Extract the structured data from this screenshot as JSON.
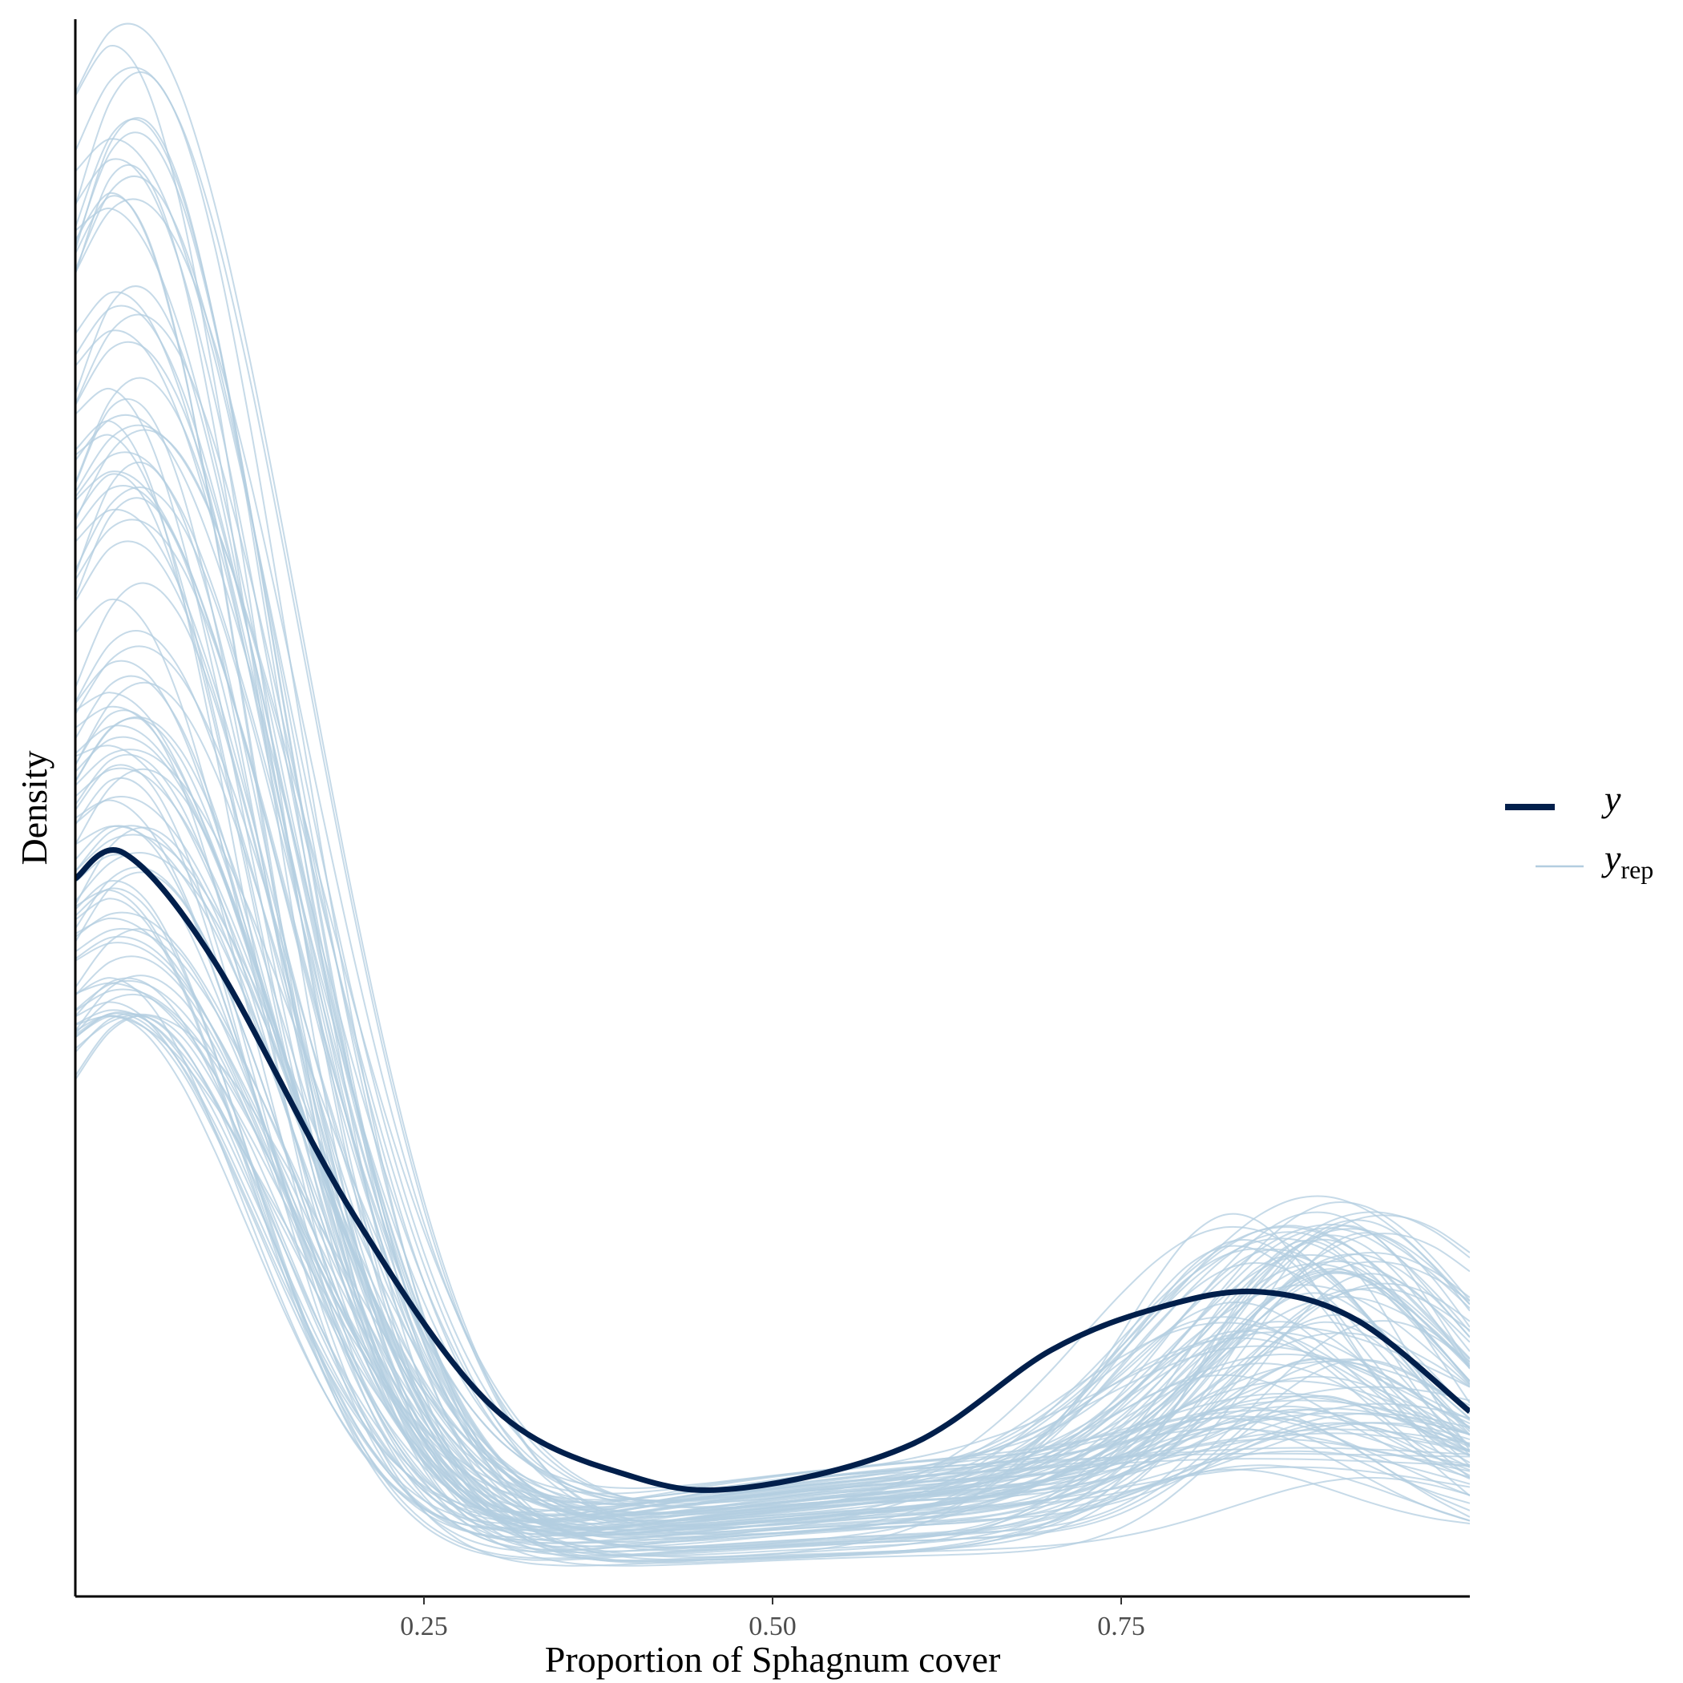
{
  "chart_data": {
    "type": "line",
    "title": "",
    "xlabel": "Proportion of Sphagnum cover",
    "ylabel": "Density",
    "xlim": [
      0.0,
      1.0
    ],
    "ylim": [
      0.0,
      4.35
    ],
    "x_ticks": [
      0.25,
      0.5,
      0.75
    ],
    "x_tick_labels": [
      "0.25",
      "0.50",
      "0.75"
    ],
    "y_ticks_shown": false,
    "grid": false,
    "legend_position": "right",
    "legend": [
      {
        "key": "y",
        "label": "y",
        "subscript": ""
      },
      {
        "key": "yrep",
        "label": "y",
        "subscript": "rep"
      }
    ],
    "colors": {
      "y": "#011f4b",
      "yrep": "#b3cde0"
    },
    "series": [
      {
        "name": "y",
        "x": [
          0.0,
          0.035,
          0.1,
          0.2,
          0.3,
          0.4,
          0.48,
          0.6,
          0.7,
          0.78,
          0.85,
          0.92,
          1.0
        ],
        "values": [
          1.98,
          2.05,
          1.75,
          1.05,
          0.52,
          0.33,
          0.3,
          0.42,
          0.68,
          0.8,
          0.84,
          0.76,
          0.51
        ]
      }
    ],
    "replicates_summary": {
      "name": "yrep",
      "count": 100,
      "peak_x_range": [
        0.02,
        0.05
      ],
      "peak_density_range": [
        1.6,
        4.35
      ],
      "min_density_range": [
        0.0,
        0.4
      ],
      "right_hump_x": 0.88,
      "right_hump_density_range": [
        0.2,
        0.95
      ]
    }
  }
}
